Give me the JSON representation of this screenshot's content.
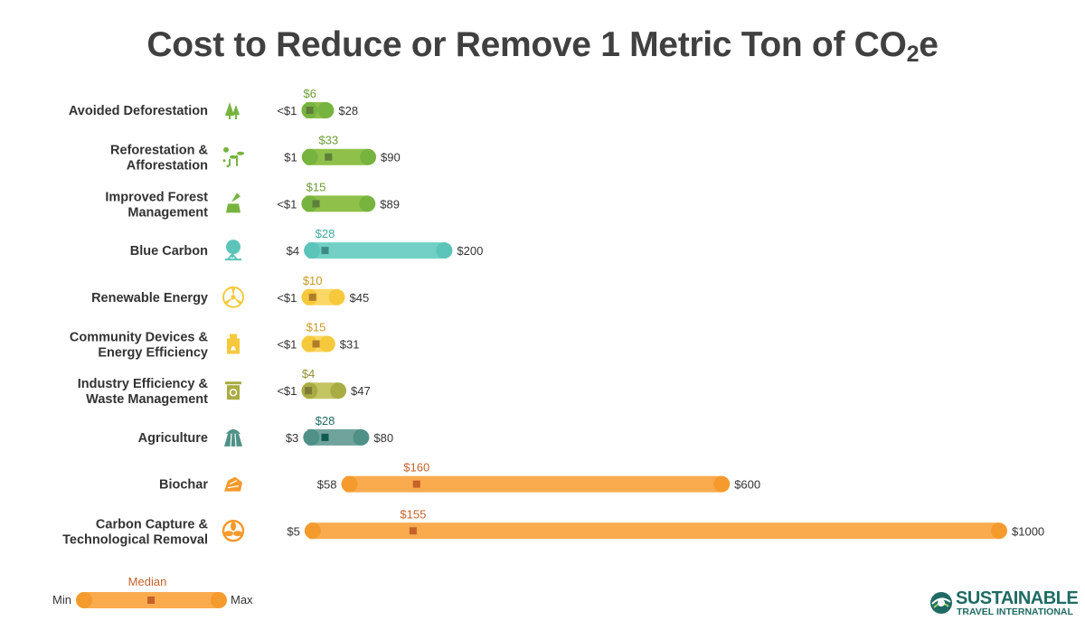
{
  "title": {
    "main": "Cost to Reduce or Remove 1 Metric Ton of CO",
    "subscript": "2",
    "suffix": "e"
  },
  "chart_data": {
    "type": "range",
    "title": "Cost to Reduce or Remove 1 Metric Ton of CO2e",
    "units": "USD per metric ton CO2e",
    "rows": [
      {
        "id": "avoided-deforestation",
        "label": [
          "Avoided Deforestation"
        ],
        "min": 0.5,
        "median": 6,
        "max": 28,
        "min_label": "<$1",
        "median_label": "$6",
        "max_label": "$28",
        "icon": "trees-shield-icon",
        "color": "#8fc04a",
        "end_color": "#77b43f",
        "median_color": "#5e7f3a",
        "label_color": "#6a9e34"
      },
      {
        "id": "reforestation",
        "label": [
          "Reforestation &",
          "Afforestation"
        ],
        "min": 1,
        "median": 33,
        "max": 90,
        "min_label": "$1",
        "median_label": "$33",
        "max_label": "$90",
        "icon": "seedlings-icon",
        "color": "#8fc04a",
        "end_color": "#77b43f",
        "median_color": "#5e7f3a",
        "label_color": "#6a9e34"
      },
      {
        "id": "improved-forest",
        "label": [
          "Improved Forest",
          "Management"
        ],
        "min": 0.5,
        "median": 15,
        "max": 89,
        "min_label": "<$1",
        "median_label": "$15",
        "max_label": "$89",
        "icon": "axe-stump-icon",
        "color": "#8fc04a",
        "end_color": "#77b43f",
        "median_color": "#5e7f3a",
        "label_color": "#6a9e34"
      },
      {
        "id": "blue-carbon",
        "label": [
          "Blue Carbon"
        ],
        "min": 4,
        "median": 28,
        "max": 200,
        "min_label": "$4",
        "median_label": "$28",
        "max_label": "$200",
        "icon": "mangrove-icon",
        "color": "#72d0c6",
        "end_color": "#5cc4b9",
        "median_color": "#3c8a82",
        "label_color": "#3fa89d"
      },
      {
        "id": "renewable-energy",
        "label": [
          "Renewable Energy"
        ],
        "min": 0.5,
        "median": 10,
        "max": 45,
        "min_label": "<$1",
        "median_label": "$10",
        "max_label": "$45",
        "icon": "turbine-icon",
        "color": "#fbd866",
        "end_color": "#f6c93d",
        "median_color": "#b07d2a",
        "label_color": "#c99a22"
      },
      {
        "id": "community-devices",
        "label": [
          "Community Devices &",
          "Energy Efficiency"
        ],
        "min": 0.5,
        "median": 15,
        "max": 31,
        "min_label": "<$1",
        "median_label": "$15",
        "max_label": "$31",
        "icon": "cookstove-icon",
        "color": "#fbd866",
        "end_color": "#f6c93d",
        "median_color": "#b07d2a",
        "label_color": "#c99a22"
      },
      {
        "id": "industry-efficiency",
        "label": [
          "Industry Efficiency &",
          "Waste Management"
        ],
        "min": 0.5,
        "median": 4,
        "max": 47,
        "min_label": "<$1",
        "median_label": "$4",
        "max_label": "$47",
        "icon": "recycle-bin-icon",
        "color": "#c3c562",
        "end_color": "#a9ac43",
        "median_color": "#7f7a35",
        "label_color": "#8f9132"
      },
      {
        "id": "agriculture",
        "label": [
          "Agriculture"
        ],
        "min": 3,
        "median": 28,
        "max": 80,
        "min_label": "$3",
        "median_label": "$28",
        "max_label": "$80",
        "icon": "field-icon",
        "color": "#6fa39b",
        "end_color": "#4f9186",
        "median_color": "#0f5a52",
        "label_color": "#1f6b63"
      },
      {
        "id": "biochar",
        "label": [
          "Biochar"
        ],
        "min": 58,
        "median": 160,
        "max": 600,
        "min_label": "$58",
        "median_label": "$160",
        "max_label": "$600",
        "icon": "charcoal-icon",
        "color": "#f9ab4e",
        "end_color": "#f59a2d",
        "median_color": "#c4622a",
        "label_color": "#c4622a"
      },
      {
        "id": "carbon-capture",
        "label": [
          "Carbon Capture &",
          "Technological Removal"
        ],
        "min": 5,
        "median": 155,
        "max": 1000,
        "min_label": "$5",
        "median_label": "$155",
        "max_label": "$1000",
        "icon": "fan-icon",
        "color": "#f9ab4e",
        "end_color": "#f59a2d",
        "median_color": "#c4622a",
        "label_color": "#c4622a"
      }
    ]
  },
  "legend": {
    "min": "Min",
    "median": "Median",
    "max": "Max"
  },
  "brand": {
    "name": "SUSTAINABLE",
    "tagline": "TRAVEL INTERNATIONAL",
    "color": "#1f6b63"
  }
}
